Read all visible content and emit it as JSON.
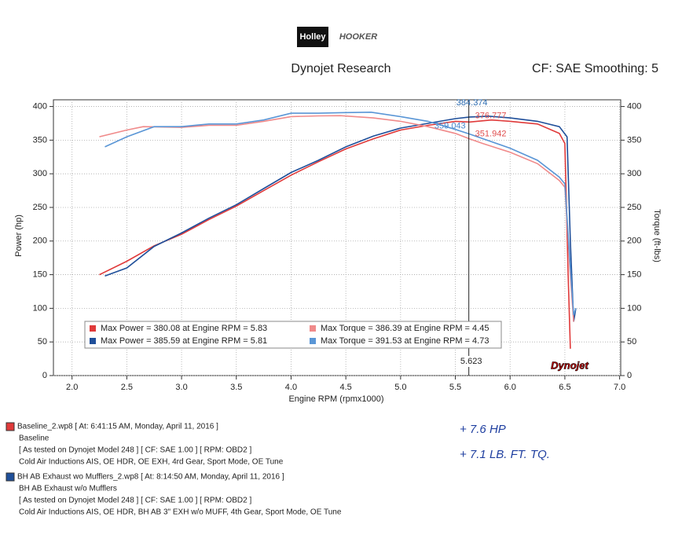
{
  "chart_data": {
    "type": "line",
    "logos": [
      "Holley",
      "HOOKER"
    ],
    "title": "Dynojet Research",
    "subtitle": "CF: SAE Smoothing: 5",
    "xlabel": "Engine RPM (rpmx1000)",
    "ylabel": "Power (hp)",
    "y2label": "Torque (ft-lbs)",
    "brand": "Dynojet",
    "xlim": [
      1.83,
      7.01
    ],
    "xticks": [
      {
        "value": 2,
        "label": "2.0"
      },
      2.5,
      {
        "value": 3,
        "label": "3.0"
      },
      3.5,
      {
        "value": 4,
        "label": "4.0"
      },
      4.5,
      {
        "value": 5,
        "label": "5.0"
      },
      5.5,
      {
        "value": 6,
        "label": "6.0"
      },
      6.5,
      {
        "value": 7,
        "label": "7.0"
      }
    ],
    "ylim": [
      0,
      410
    ],
    "yticks": [
      0,
      50,
      100,
      150,
      200,
      250,
      300,
      350,
      400
    ],
    "y2lim": [
      0,
      410
    ],
    "y2ticks": [
      0,
      50,
      100,
      150,
      200,
      250,
      300,
      350,
      400
    ],
    "grid": true,
    "cursor": 5.623,
    "cursor_values": [
      {
        "value": 384.374,
        "color": "#2a6ab0"
      },
      {
        "value": 376.777,
        "color": "#e05050"
      },
      {
        "value": 359.043,
        "color": "#4a88cc"
      },
      {
        "value": 351.942,
        "color": "#e05050"
      }
    ],
    "series": [
      {
        "name": "Max Power = 380.08 at Engine RPM = 5.83",
        "color": "#e03a3a",
        "x": [
          2.25,
          2.5,
          2.75,
          3.0,
          3.25,
          3.5,
          3.75,
          4.0,
          4.25,
          4.5,
          4.75,
          5.0,
          5.25,
          5.5,
          5.63,
          5.83,
          6.0,
          6.25,
          6.45,
          6.5,
          6.53,
          6.55
        ],
        "values": [
          150,
          170,
          193,
          210,
          232,
          252,
          275,
          298,
          318,
          337,
          352,
          365,
          372,
          378,
          377,
          380,
          378,
          374,
          360,
          345,
          150,
          40
        ]
      },
      {
        "name": "Max Power = 385.59 at Engine RPM = 5.81",
        "color": "#1f4f9a",
        "x": [
          2.3,
          2.5,
          2.75,
          3.0,
          3.25,
          3.5,
          3.75,
          4.0,
          4.25,
          4.5,
          4.75,
          5.0,
          5.25,
          5.5,
          5.63,
          5.81,
          6.0,
          6.25,
          6.45,
          6.52,
          6.55,
          6.58,
          6.6
        ],
        "values": [
          148,
          160,
          192,
          212,
          234,
          254,
          278,
          302,
          320,
          340,
          356,
          368,
          375,
          382,
          384.374,
          385.59,
          383,
          378,
          370,
          355,
          200,
          80,
          100
        ]
      },
      {
        "name": "Max Torque = 386.39 at Engine RPM = 4.45",
        "color": "#f08a8a",
        "axis": "y2",
        "x": [
          2.25,
          2.5,
          2.65,
          3.0,
          3.25,
          3.5,
          3.75,
          4.0,
          4.25,
          4.45,
          4.75,
          5.0,
          5.25,
          5.5,
          5.63,
          5.75,
          6.0,
          6.25,
          6.45,
          6.5,
          6.55,
          6.58
        ],
        "values": [
          355,
          365,
          370,
          369,
          372,
          372,
          378,
          385,
          386,
          386.39,
          383,
          378,
          370,
          360,
          351.942,
          345,
          332,
          315,
          290,
          280,
          150,
          80
        ]
      },
      {
        "name": "Max Torque = 391.53 at Engine RPM = 4.73",
        "color": "#5a96d6",
        "axis": "y2",
        "x": [
          2.3,
          2.5,
          2.75,
          3.0,
          3.25,
          3.5,
          3.75,
          4.0,
          4.25,
          4.5,
          4.73,
          5.0,
          5.25,
          5.5,
          5.63,
          6.0,
          6.25,
          6.45,
          6.5,
          6.55,
          6.58,
          6.6
        ],
        "values": [
          340,
          355,
          370,
          370,
          374,
          374,
          380,
          390,
          390,
          391,
          391.53,
          385,
          378,
          366,
          359.043,
          338,
          320,
          295,
          285,
          160,
          90,
          100
        ]
      }
    ],
    "runs": [
      {
        "color": "#e03a3a",
        "lines": [
          "Baseline_2.wp8 [ At: 6:41:15 AM, Monday, April 11, 2016 ]",
          "Baseline",
          "[ As tested on Dynojet Model 248 ]  [ CF: SAE 1.00 ]  [ RPM: OBD2 ]",
          "Cold Air Inductions AIS, OE HDR, OE EXH, 4rd Gear, Sport Mode, OE Tune"
        ]
      },
      {
        "color": "#1f4f9a",
        "lines": [
          "BH AB Exhaust wo Mufflers_2.wp8 [ At: 8:14:50 AM, Monday, April 11, 2016 ]",
          "BH AB Exhaust w/o Mufflers",
          "[ As tested on Dynojet Model 248 ]  [ CF: SAE 1.00 ]  [ RPM: OBD2 ]",
          "Cold Air Inductions AIS, OE HDR, BH AB 3\" EXH w/o MUFF, 4th Gear, Sport Mode, OE Tune"
        ]
      }
    ],
    "handwritten": [
      "+ 7.6 HP",
      "+ 7.1 LB. FT. TQ."
    ]
  }
}
